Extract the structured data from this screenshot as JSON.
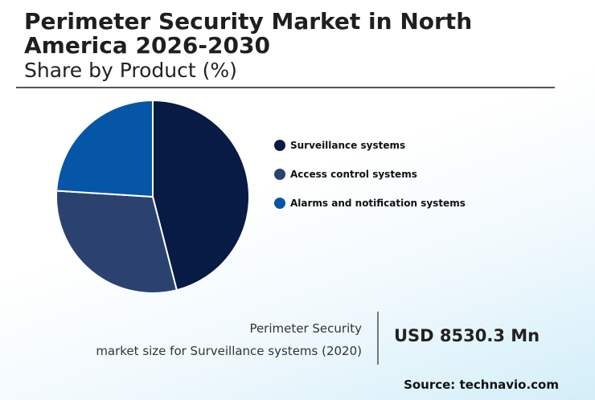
{
  "header": {
    "title": "Perimeter Security Market in North America 2026-2030",
    "subtitle": "Share by Product (%)"
  },
  "chart_data": {
    "type": "pie",
    "start_angle_deg": 0,
    "direction": "clockwise",
    "labels": [
      "Surveillance systems",
      "Access control systems",
      "Alarms and notification systems"
    ],
    "values": [
      46,
      30,
      24
    ],
    "colors": [
      "#081b45",
      "#2b4271",
      "#0556a7"
    ],
    "legend": "right"
  },
  "stat": {
    "label_line1": "Perimeter Security",
    "label_line2": "market size for Surveillance systems (2020)",
    "value": "USD 8530.3 Mn"
  },
  "footer": {
    "source": "Source: technavio.com"
  }
}
